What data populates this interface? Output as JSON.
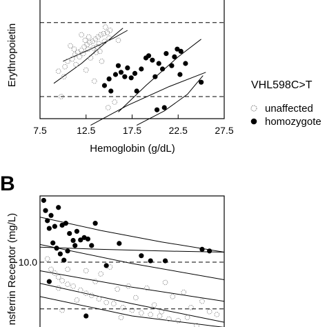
{
  "chart_data": [
    {
      "panel": "",
      "type": "scatter",
      "title": "",
      "xlabel": "Hemoglobin (g/dL)",
      "ylabel": "Erythropoietin",
      "xlim": [
        7.5,
        27.5
      ],
      "xticks": [
        "7.5",
        "12.5",
        "17.5",
        "22.5",
        "27.5"
      ],
      "grid": false,
      "legend": {
        "title": "VHL598C>T",
        "placement": "right",
        "entries": [
          "unaffected",
          "homozygote"
        ]
      },
      "reference_lines": [
        2.0,
        8.7
      ],
      "series": [
        {
          "name": "unaffected",
          "marker": "open-circle",
          "points": [
            [
              9.5,
              4.3
            ],
            [
              10.2,
              4.7
            ],
            [
              10.5,
              5.2
            ],
            [
              11.0,
              5.4
            ],
            [
              11.3,
              5.8
            ],
            [
              11.6,
              6.0
            ],
            [
              12.0,
              6.2
            ],
            [
              12.3,
              6.5
            ],
            [
              12.6,
              6.7
            ],
            [
              12.9,
              6.9
            ],
            [
              13.2,
              7.0
            ],
            [
              13.5,
              7.2
            ],
            [
              13.8,
              7.4
            ],
            [
              14.1,
              7.6
            ],
            [
              14.4,
              7.7
            ],
            [
              14.8,
              7.8
            ],
            [
              11.8,
              5.6
            ],
            [
              12.2,
              5.9
            ],
            [
              12.7,
              6.3
            ],
            [
              13.3,
              6.4
            ],
            [
              13.9,
              6.8
            ],
            [
              14.5,
              7.0
            ],
            [
              15.0,
              7.3
            ],
            [
              11.2,
              6.3
            ],
            [
              12.8,
              7.4
            ],
            [
              13.6,
              6.0
            ],
            [
              12.4,
              7.1
            ],
            [
              14.6,
              8.3
            ],
            [
              13.0,
              5.5
            ],
            [
              14.0,
              6.1
            ],
            [
              15.1,
              8.0
            ],
            [
              10.8,
              6.6
            ],
            [
              16.0,
              7.1
            ],
            [
              13.4,
              3.4
            ],
            [
              14.2,
              5.2
            ],
            [
              15.6,
              1.5
            ],
            [
              11.4,
              4.9
            ],
            [
              12.0,
              7.6
            ],
            [
              12.5,
              4.4
            ],
            [
              13.7,
              6.5
            ],
            [
              10.1,
              3.8
            ],
            [
              9.8,
              2.0
            ],
            [
              14.9,
              1.0
            ]
          ]
        },
        {
          "name": "homozygote",
          "marker": "filled-circle",
          "points": [
            [
              14.5,
              3.0
            ],
            [
              15.0,
              3.6
            ],
            [
              15.2,
              2.5
            ],
            [
              15.7,
              4.0
            ],
            [
              16.3,
              4.2
            ],
            [
              16.7,
              3.8
            ],
            [
              17.0,
              4.6
            ],
            [
              17.4,
              3.7
            ],
            [
              17.8,
              4.1
            ],
            [
              18.5,
              4.5
            ],
            [
              19.0,
              5.5
            ],
            [
              19.3,
              5.7
            ],
            [
              19.7,
              5.3
            ],
            [
              20.0,
              3.8
            ],
            [
              20.4,
              5.0
            ],
            [
              20.8,
              4.5
            ],
            [
              21.2,
              5.9
            ],
            [
              21.8,
              4.8
            ],
            [
              22.1,
              5.6
            ],
            [
              22.4,
              6.3
            ],
            [
              22.8,
              6.1
            ],
            [
              23.3,
              5.0
            ],
            [
              25.0,
              3.3
            ],
            [
              21.0,
              1.0
            ],
            [
              20.2,
              0.8
            ],
            [
              18.0,
              2.5
            ],
            [
              16.0,
              4.8
            ],
            [
              22.7,
              4.0
            ]
          ]
        }
      ],
      "fit_lines": [
        {
          "points": [
            [
              9.0,
              3.2
            ],
            [
              12.0,
              5.0
            ],
            [
              14.5,
              6.8
            ],
            [
              16.5,
              8.2
            ]
          ]
        },
        {
          "points": [
            [
              10.0,
              5.2
            ],
            [
              13.0,
              6.3
            ],
            [
              15.5,
              7.3
            ],
            [
              17.0,
              8.0
            ]
          ]
        },
        {
          "points": [
            [
              13.0,
              -0.6
            ],
            [
              17.0,
              1.2
            ],
            [
              21.5,
              2.9
            ],
            [
              25.5,
              4.2
            ]
          ]
        },
        {
          "points": [
            [
              18.0,
              -0.6
            ],
            [
              21.0,
              0.7
            ],
            [
              23.5,
              2.2
            ],
            [
              25.2,
              3.9
            ]
          ]
        },
        {
          "points": [
            [
              16.0,
              0.6
            ],
            [
              19.0,
              3.0
            ],
            [
              22.5,
              5.6
            ],
            [
              25.0,
              7.2
            ]
          ]
        }
      ]
    },
    {
      "panel": "B",
      "type": "scatter",
      "title": "",
      "xlabel": "",
      "ylabel": "nsferrin Receptor (mg/L)",
      "yscale": "log",
      "yticks": [
        "10.0"
      ],
      "grid": false,
      "reference_lines": [
        10.0,
        5.0
      ],
      "series": [
        {
          "name": "unaffected",
          "marker": "open-circle",
          "points": [
            [
              0.04,
              10.5
            ],
            [
              0.06,
              9.0
            ],
            [
              0.08,
              8.5
            ],
            [
              0.1,
              8.0
            ],
            [
              0.12,
              7.6
            ],
            [
              0.15,
              7.2
            ],
            [
              0.18,
              7.0
            ],
            [
              0.22,
              6.6
            ],
            [
              0.25,
              6.3
            ],
            [
              0.28,
              6.1
            ],
            [
              0.32,
              5.8
            ],
            [
              0.36,
              5.5
            ],
            [
              0.4,
              5.4
            ],
            [
              0.45,
              5.1
            ],
            [
              0.5,
              4.9
            ],
            [
              0.55,
              4.7
            ],
            [
              0.6,
              4.6
            ],
            [
              0.65,
              4.5
            ],
            [
              0.7,
              4.3
            ],
            [
              0.75,
              4.2
            ],
            [
              0.8,
              4.4
            ],
            [
              0.85,
              3.9
            ],
            [
              0.9,
              3.8
            ],
            [
              0.1,
              6.8
            ],
            [
              0.2,
              5.7
            ],
            [
              0.3,
              7.5
            ],
            [
              0.42,
              6.7
            ],
            [
              0.52,
              5.9
            ],
            [
              0.62,
              5.3
            ],
            [
              0.72,
              6.0
            ],
            [
              0.82,
              5.1
            ],
            [
              0.92,
              4.8
            ],
            [
              0.15,
              9.0
            ],
            [
              0.33,
              8.4
            ],
            [
              0.48,
              7.0
            ],
            [
              0.58,
              6.8
            ],
            [
              0.68,
              7.4
            ],
            [
              0.78,
              6.4
            ],
            [
              0.25,
              8.8
            ],
            [
              0.38,
              9.3
            ],
            [
              0.12,
              4.9
            ],
            [
              0.44,
              4.4
            ],
            [
              0.66,
              4.8
            ],
            [
              0.88,
              5.6
            ],
            [
              0.96,
              4.6
            ]
          ]
        },
        {
          "name": "homozygote",
          "marker": "filled-circle",
          "points": [
            [
              0.02,
              25.0
            ],
            [
              0.03,
              21.5
            ],
            [
              0.04,
              18.5
            ],
            [
              0.05,
              16.5
            ],
            [
              0.06,
              20.0
            ],
            [
              0.08,
              17.0
            ],
            [
              0.1,
              22.5
            ],
            [
              0.12,
              17.3
            ],
            [
              0.14,
              17.8
            ],
            [
              0.16,
              15.3
            ],
            [
              0.18,
              13.8
            ],
            [
              0.2,
              15.8
            ],
            [
              0.22,
              13.9
            ],
            [
              0.24,
              14.4
            ],
            [
              0.26,
              14.1
            ],
            [
              0.07,
              13.3
            ],
            [
              0.09,
              12.3
            ],
            [
              0.11,
              11.3
            ],
            [
              0.13,
              10.3
            ],
            [
              0.15,
              11.8
            ],
            [
              0.19,
              12.8
            ],
            [
              0.28,
              12.8
            ],
            [
              0.36,
              9.5
            ],
            [
              0.43,
              13.2
            ],
            [
              0.55,
              11.0
            ],
            [
              0.6,
              10.2
            ],
            [
              0.68,
              10.2
            ],
            [
              0.88,
              12.1
            ],
            [
              0.92,
              11.8
            ],
            [
              0.3,
              17.8
            ],
            [
              0.25,
              4.5
            ],
            [
              0.05,
              7.5
            ],
            [
              0.6,
              3.8
            ]
          ]
        }
      ],
      "fit_lines": [
        {
          "points": [
            [
              0.0,
              19.5
            ],
            [
              0.33,
              16.0
            ],
            [
              0.66,
              13.5
            ],
            [
              1.0,
              11.6
            ]
          ]
        },
        {
          "points": [
            [
              0.0,
              12.5
            ],
            [
              0.33,
              12.1
            ],
            [
              0.66,
              11.8
            ],
            [
              1.0,
              11.6
            ]
          ]
        },
        {
          "points": [
            [
              0.0,
              13.0
            ],
            [
              0.5,
              9.8
            ],
            [
              1.0,
              7.7
            ]
          ]
        },
        {
          "points": [
            [
              0.0,
              8.8
            ],
            [
              0.5,
              6.9
            ],
            [
              1.0,
              5.6
            ]
          ]
        },
        {
          "points": [
            [
              0.0,
              7.3
            ],
            [
              0.5,
              5.4
            ],
            [
              1.0,
              4.1
            ]
          ]
        },
        {
          "points": [
            [
              0.0,
              6.0
            ],
            [
              0.5,
              4.5
            ],
            [
              1.0,
              3.8
            ]
          ]
        }
      ]
    }
  ]
}
